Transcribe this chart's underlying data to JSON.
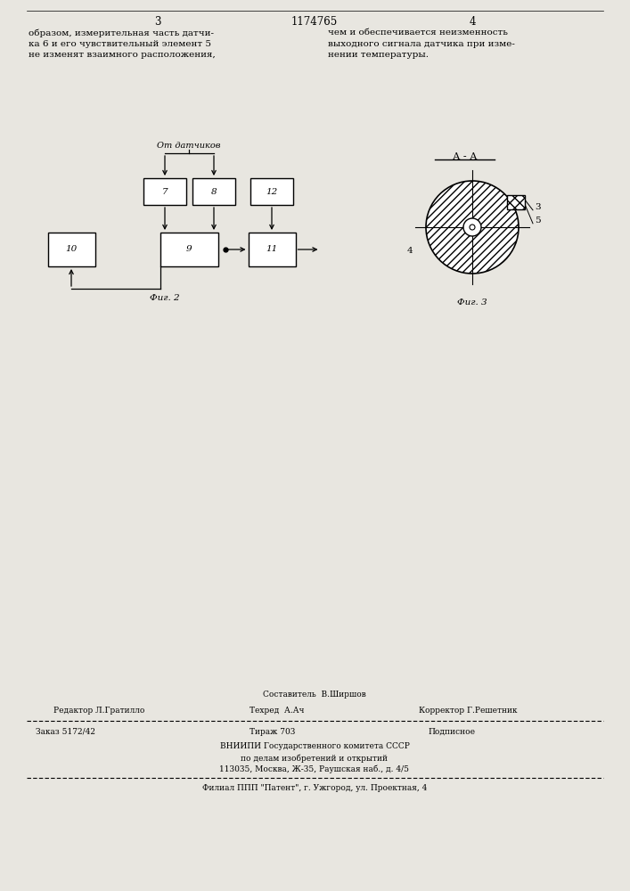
{
  "bg_color": "#e8e6e0",
  "page_width": 7.07,
  "page_height": 10.0,
  "header_text": "1174765",
  "header_page_left": "3",
  "header_page_right": "4",
  "col_left_text": "образом, измерительная часть датчи-\nка 6 и его чувствительный элемент 5\nне изменят взаимного расположения,",
  "col_right_text": "чем и обеспечивается неизменность\nвыходного сигнала датчика при изме-\nнении температуры.",
  "fig2_label": "Фиг. 2",
  "fig3_label": "Фиг. 3",
  "from_sensors_label": "От датчиков",
  "aa_label": "А - А",
  "editor_line": "Редактор Л.Гратилло",
  "composer_line": "Составитель  В.Ширшов",
  "techred_line": "Техред  А.Ач",
  "corrector_line": "Корректор Г.Решетник",
  "order_line": "Заказ 5172/42",
  "tirazh_line": "Тираж 703",
  "podpisnoe_line": "Подписное",
  "vniiki_line1": "ВНИИПИ Государственного комитета СССР",
  "vniiki_line2": "по делам изобретений и открытий",
  "vniiki_line3": "113035, Москва, Ж-35, Раушская наб., д. 4/5",
  "filial_line": "Филиал ППП \"Патент\", г. Ужгород, ул. Проектная, 4"
}
